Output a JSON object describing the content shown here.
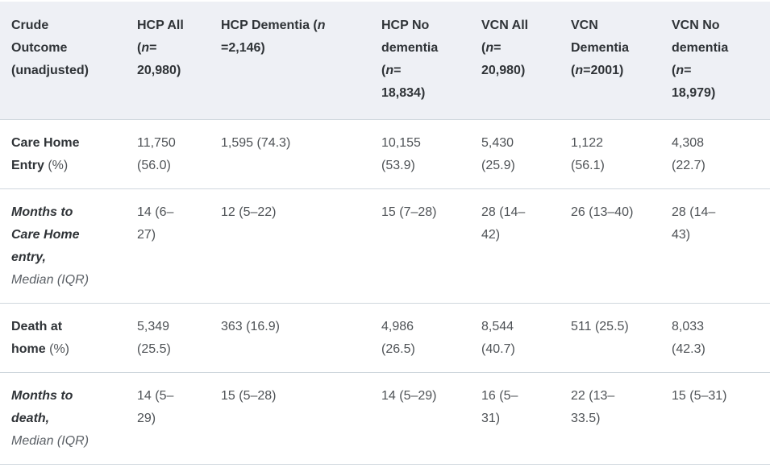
{
  "colors": {
    "header_background": "#eef0f5",
    "divider": "#cfd7dd",
    "heading_text": "#2f3337",
    "body_text": "#4e5256"
  },
  "table": {
    "description": "Crude outcome comparison table (unadjusted) for HCP and VCN cohorts by dementia status",
    "columns": [
      {
        "label": "**Crude\nOutcome\n(unadjusted)**"
      },
      {
        "label": "**HCP All\n(*n*=\n20,980)**"
      },
      {
        "label": "**HCP Dementia (*n*\n=2,146)**"
      },
      {
        "label": "**HCP No\ndementia\n(*n*=\n18,834)**"
      },
      {
        "label": "**VCN All\n(*n*=\n20,980)**"
      },
      {
        "label": "**VCN\nDementia\n(*n*=2001)**"
      },
      {
        "label": "**VCN No\ndementia\n(*n*=\n18,979)**"
      }
    ],
    "rows": [
      {
        "label": "**Care Home\nEntry** (%)",
        "values": [
          "11,750\n(56.0)",
          "1,595 (74.3)",
          "10,155\n(53.9)",
          "5,430\n(25.9)",
          "1,122\n(56.1)",
          "4,308\n(22.7)"
        ]
      },
      {
        "label": "***Months to\nCare Home\nentry,***\n*Median (IQR)*",
        "values": [
          "14 (6–\n27)",
          "12 (5–22)",
          "15 (7–28)",
          "28 (14–\n42)",
          "26 (13–40)",
          "28 (14–\n43)"
        ]
      },
      {
        "label": "**Death at\nhome** (%)",
        "values": [
          "5,349\n(25.5)",
          "363 (16.9)",
          "4,986\n(26.5)",
          "8,544\n(40.7)",
          "511 (25.5)",
          "8,033\n(42.3)"
        ]
      },
      {
        "label": "***Months to\ndeath,***\n*Median (IQR)*",
        "values": [
          "14 (5–\n29)",
          "15 (5–28)",
          "14 (5–29)",
          "16 (5–\n31)",
          "22 (13–\n33.5)",
          "15 (5–31)"
        ]
      }
    ]
  }
}
